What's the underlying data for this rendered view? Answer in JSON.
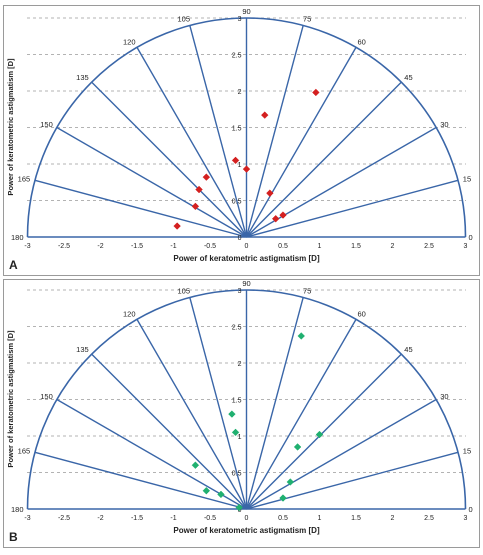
{
  "chart_data": [
    {
      "type": "scatter",
      "panel_label": "A",
      "xlabel": "Power of keratometric astigmatism [D]",
      "ylabel": "Power of keratometric astigmatism [D]",
      "xlim": [
        -3,
        3
      ],
      "ylim": [
        0,
        3
      ],
      "x_ticks": [
        "-3",
        "-2.5",
        "-2",
        "-1.5",
        "-1",
        "-0.5",
        "0",
        "0.5",
        "1",
        "1.5",
        "2",
        "2.5",
        "3"
      ],
      "y_ticks": [
        "0",
        "0.5",
        "1",
        "1.5",
        "2",
        "2.5",
        "3"
      ],
      "angle_labels": [
        "0",
        "15",
        "30",
        "45",
        "60",
        "75",
        "90",
        "105",
        "120",
        "135",
        "150",
        "165",
        "180"
      ],
      "grid": "horizontal dashed",
      "marker_color": "#d42020",
      "marker": "diamond",
      "points": [
        {
          "x": -0.95,
          "y": 0.15
        },
        {
          "x": -0.7,
          "y": 0.42
        },
        {
          "x": -0.65,
          "y": 0.65
        },
        {
          "x": -0.55,
          "y": 0.82
        },
        {
          "x": -0.15,
          "y": 1.05
        },
        {
          "x": 0.0,
          "y": 0.93
        },
        {
          "x": 0.25,
          "y": 1.67
        },
        {
          "x": 0.95,
          "y": 1.98
        },
        {
          "x": 0.32,
          "y": 0.6
        },
        {
          "x": 0.4,
          "y": 0.25
        },
        {
          "x": 0.5,
          "y": 0.3
        }
      ]
    },
    {
      "type": "scatter",
      "panel_label": "B",
      "xlabel": "Power of keratometric astigmatism [D]",
      "ylabel": "Power of keratometric astigmatism [D]",
      "xlim": [
        -3,
        3
      ],
      "ylim": [
        0,
        3
      ],
      "x_ticks": [
        "-3",
        "-2.5",
        "-2",
        "-1.5",
        "-1",
        "-0.5",
        "0",
        "0.5",
        "1",
        "1.5",
        "2",
        "2.5",
        "3"
      ],
      "y_ticks": [
        "0",
        "0.5",
        "1",
        "1.5",
        "2",
        "2.5",
        "3"
      ],
      "angle_labels": [
        "0",
        "15",
        "30",
        "45",
        "60",
        "75",
        "90",
        "105",
        "120",
        "135",
        "150",
        "165",
        "180"
      ],
      "grid": "horizontal dashed",
      "marker_color": "#20b070",
      "marker": "diamond",
      "points": [
        {
          "x": -0.2,
          "y": 1.3
        },
        {
          "x": -0.15,
          "y": 1.05
        },
        {
          "x": 0.75,
          "y": 2.37
        },
        {
          "x": 1.0,
          "y": 1.02
        },
        {
          "x": 0.7,
          "y": 0.85
        },
        {
          "x": -0.7,
          "y": 0.6
        },
        {
          "x": -0.55,
          "y": 0.25
        },
        {
          "x": -0.35,
          "y": 0.2
        },
        {
          "x": 0.6,
          "y": 0.37
        },
        {
          "x": 0.5,
          "y": 0.15
        },
        {
          "x": -0.1,
          "y": 0.02
        }
      ]
    }
  ]
}
